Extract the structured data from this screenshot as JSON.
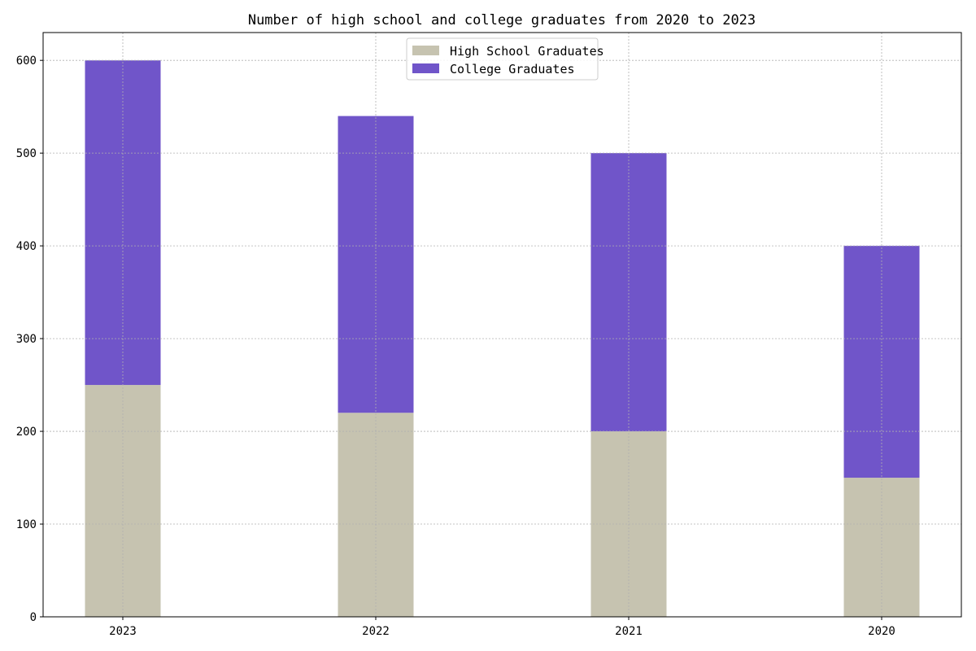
{
  "chart_data": {
    "type": "bar",
    "stacked": true,
    "title": "Number of high school and college graduates from 2020 to 2023",
    "xlabel": "",
    "ylabel": "",
    "categories": [
      "2023",
      "2022",
      "2021",
      "2020"
    ],
    "series": [
      {
        "name": "High School Graduates",
        "values": [
          250,
          220,
          200,
          150
        ],
        "color": "#c6c3b0"
      },
      {
        "name": "College Graduates",
        "values": [
          350,
          320,
          300,
          250
        ],
        "color": "#7055c9"
      }
    ],
    "ylim": [
      0,
      630
    ],
    "yticks": [
      0,
      100,
      200,
      300,
      400,
      500,
      600
    ],
    "grid": true,
    "legend": "top-center"
  }
}
